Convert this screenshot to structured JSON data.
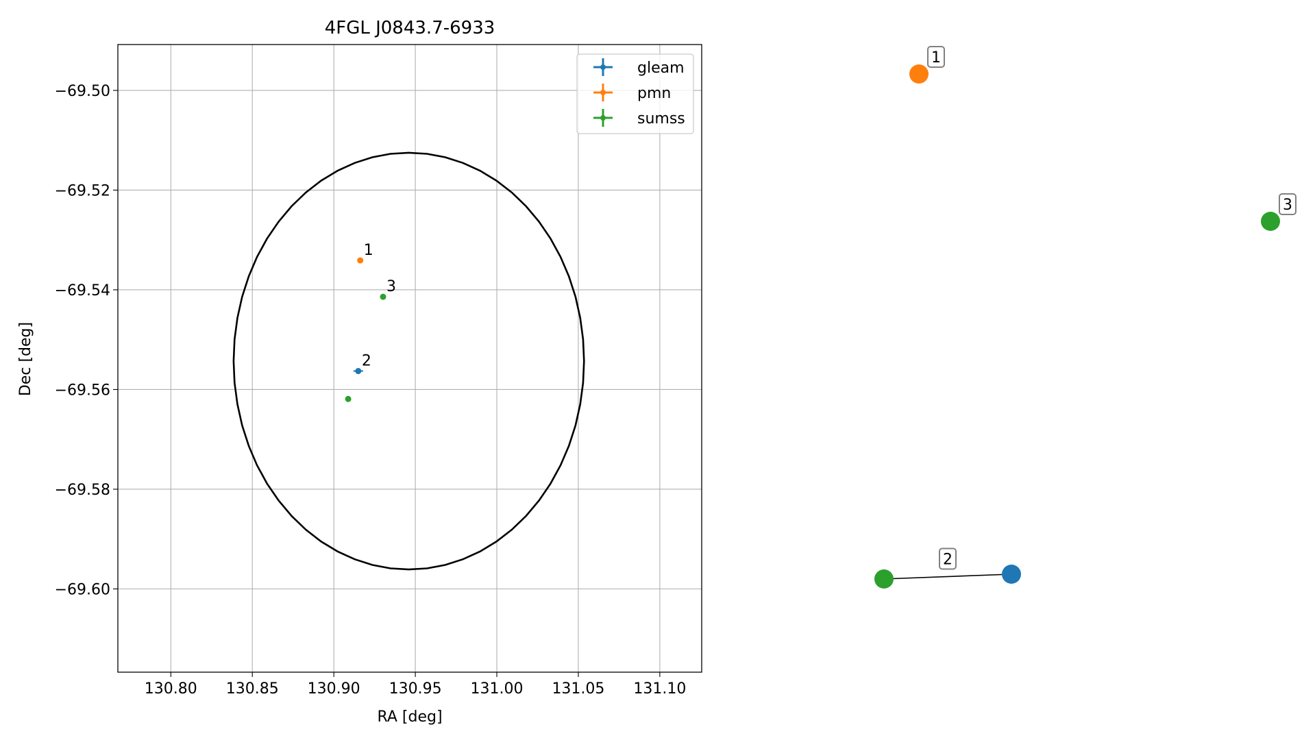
{
  "chart_data": [
    {
      "type": "scatter",
      "title": "4FGL J0843.7-6933",
      "xlabel": "RA [deg]",
      "ylabel": "Dec [deg]",
      "xlim": [
        130.7675,
        131.1257
      ],
      "ylim": [
        -69.6167,
        -69.4908
      ],
      "xticks": [
        130.8,
        130.85,
        130.9,
        130.95,
        131.0,
        131.05,
        131.1
      ],
      "xtick_labels": [
        "130.80",
        "130.85",
        "130.90",
        "130.95",
        "131.00",
        "131.05",
        "131.10"
      ],
      "yticks": [
        -69.5,
        -69.52,
        -69.54,
        -69.56,
        -69.58,
        -69.6
      ],
      "ytick_labels": [
        "−69.50",
        "−69.52",
        "−69.54",
        "−69.56",
        "−69.58",
        "−69.60"
      ],
      "grid": true,
      "legend_position": "top-right",
      "series": [
        {
          "name": "gleam",
          "color": "#1f77b4",
          "x": [
            130.915
          ],
          "y": [
            -69.5563
          ],
          "labels": [
            "2"
          ],
          "xerr": [
            0.003
          ],
          "yerr": [
            0.0004
          ]
        },
        {
          "name": "pmn",
          "color": "#ff7f0e",
          "x": [
            130.9162
          ],
          "y": [
            -69.5341
          ],
          "labels": [
            "1"
          ],
          "xerr": [
            0.0005
          ],
          "yerr": [
            0.0003
          ]
        },
        {
          "name": "sumss",
          "color": "#2ca02c",
          "x": [
            130.9088,
            130.9302
          ],
          "y": [
            -69.5619,
            -69.5414
          ],
          "labels": [
            "",
            "3"
          ],
          "xerr": [
            0.0006,
            0.0005
          ],
          "yerr": [
            0.0004,
            0.0003
          ]
        }
      ],
      "ellipse": {
        "center_ra": 130.946,
        "center_dec": -69.5543,
        "semi_ra": 0.1075,
        "semi_dec": 0.0418,
        "color": "#000000"
      }
    },
    {
      "type": "network",
      "nodes": [
        {
          "label": "1",
          "color": "#ff7f0e"
        },
        {
          "label": "3",
          "color": "#2ca02c"
        },
        {
          "label": "",
          "color": "#2ca02c"
        },
        {
          "label": "",
          "color": "#1f77b4"
        }
      ],
      "edges": [
        {
          "from": 2,
          "to": 3,
          "label": "2"
        }
      ]
    }
  ]
}
